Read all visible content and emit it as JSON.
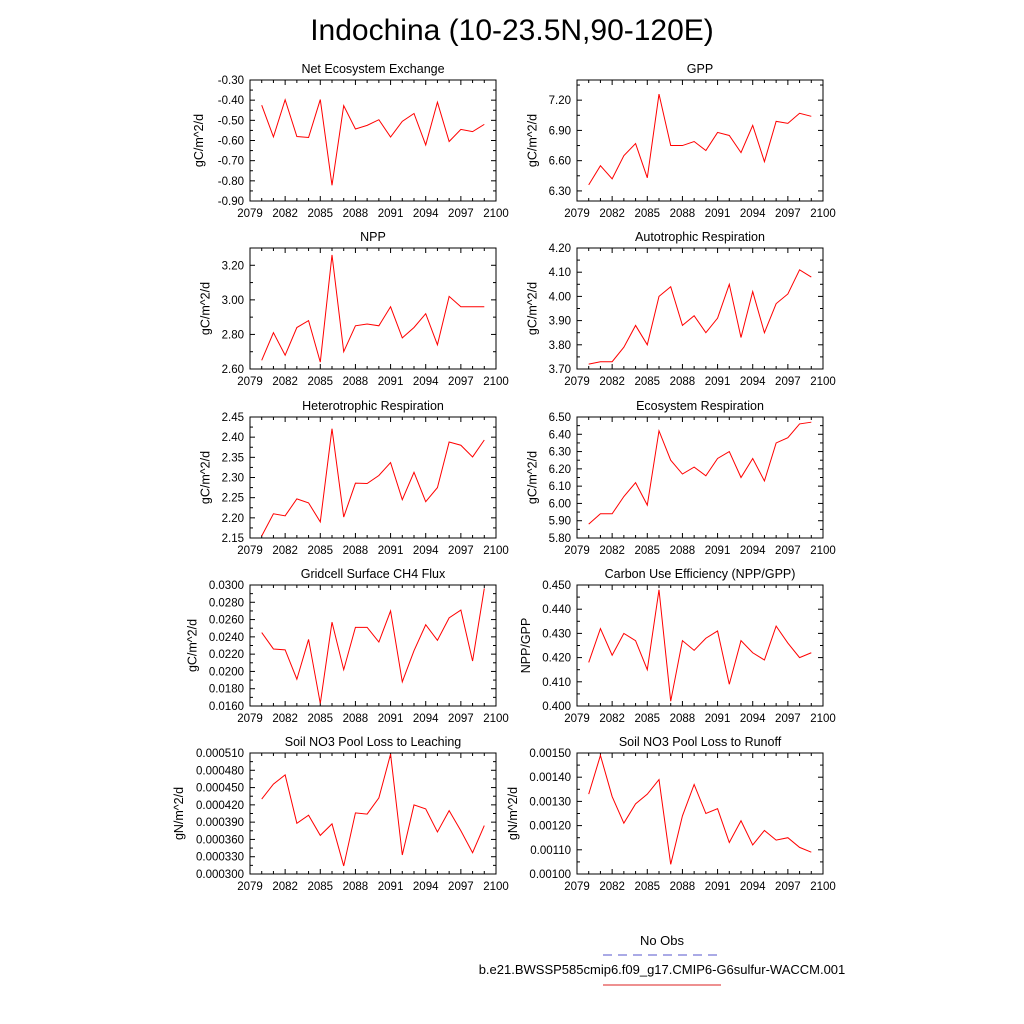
{
  "page": {
    "title": "Indochina (10-23.5N,90-120E)"
  },
  "legend": {
    "entries": [
      {
        "label": "No Obs",
        "color": "#5555cc",
        "dash": true
      },
      {
        "label": "b.e21.BWSSP585cmip6.f09_g17.CMIP6-G6sulfur-WACCM.001",
        "color": "#dd2222",
        "dash": false
      }
    ]
  },
  "colors": {
    "series": "#ff0000",
    "axis": "#000000"
  },
  "chart_data": [
    {
      "type": "line",
      "title": "Net Ecosystem Exchange",
      "ylabel": "gC/m^2/d",
      "xlim": [
        2079,
        2100
      ],
      "ylim": [
        -0.9,
        -0.3
      ],
      "xticks": [
        "2079",
        "2082",
        "2085",
        "2088",
        "2091",
        "2094",
        "2097",
        "2100"
      ],
      "yticks": [
        "-0.30",
        "-0.40",
        "-0.50",
        "-0.60",
        "-0.70",
        "-0.80",
        "-0.90"
      ],
      "x": [
        2080,
        2081,
        2082,
        2083,
        2084,
        2085,
        2086,
        2087,
        2088,
        2089,
        2090,
        2091,
        2092,
        2093,
        2094,
        2095,
        2096,
        2097,
        2098,
        2099
      ],
      "series": [
        {
          "values": [
            -0.425,
            -0.582,
            -0.398,
            -0.58,
            -0.585,
            -0.397,
            -0.822,
            -0.427,
            -0.543,
            -0.525,
            -0.497,
            -0.583,
            -0.505,
            -0.466,
            -0.622,
            -0.41,
            -0.605,
            -0.545,
            -0.556,
            -0.52
          ]
        }
      ]
    },
    {
      "type": "line",
      "title": "GPP",
      "ylabel": "gC/m^2/d",
      "xlim": [
        2079,
        2100
      ],
      "ylim": [
        6.2,
        7.4
      ],
      "xticks": [
        "2079",
        "2082",
        "2085",
        "2088",
        "2091",
        "2094",
        "2097",
        "2100"
      ],
      "yticks": [
        "7.20",
        "6.90",
        "6.60",
        "6.30"
      ],
      "x": [
        2080,
        2081,
        2082,
        2083,
        2084,
        2085,
        2086,
        2087,
        2088,
        2089,
        2090,
        2091,
        2092,
        2093,
        2094,
        2095,
        2096,
        2097,
        2098,
        2099
      ],
      "series": [
        {
          "values": [
            6.36,
            6.55,
            6.42,
            6.65,
            6.77,
            6.43,
            7.26,
            6.75,
            6.75,
            6.79,
            6.7,
            6.88,
            6.85,
            6.68,
            6.95,
            6.59,
            6.99,
            6.97,
            7.07,
            7.04
          ]
        }
      ]
    },
    {
      "type": "line",
      "title": "NPP",
      "ylabel": "gC/m^2/d",
      "xlim": [
        2079,
        2100
      ],
      "ylim": [
        2.6,
        3.3
      ],
      "xticks": [
        "2079",
        "2082",
        "2085",
        "2088",
        "2091",
        "2094",
        "2097",
        "2100"
      ],
      "yticks": [
        "3.20",
        "3.00",
        "2.80",
        "2.60"
      ],
      "x": [
        2080,
        2081,
        2082,
        2083,
        2084,
        2085,
        2086,
        2087,
        2088,
        2089,
        2090,
        2091,
        2092,
        2093,
        2094,
        2095,
        2096,
        2097,
        2098,
        2099
      ],
      "series": [
        {
          "values": [
            2.65,
            2.81,
            2.68,
            2.84,
            2.88,
            2.64,
            3.26,
            2.7,
            2.85,
            2.86,
            2.85,
            2.96,
            2.78,
            2.84,
            2.92,
            2.74,
            3.02,
            2.96,
            2.96,
            2.96
          ]
        }
      ]
    },
    {
      "type": "line",
      "title": "Autotrophic Respiration",
      "ylabel": "gC/m^2/d",
      "xlim": [
        2079,
        2100
      ],
      "ylim": [
        3.7,
        4.2
      ],
      "xticks": [
        "2079",
        "2082",
        "2085",
        "2088",
        "2091",
        "2094",
        "2097",
        "2100"
      ],
      "yticks": [
        "4.20",
        "4.10",
        "4.00",
        "3.90",
        "3.80",
        "3.70"
      ],
      "x": [
        2080,
        2081,
        2082,
        2083,
        2084,
        2085,
        2086,
        2087,
        2088,
        2089,
        2090,
        2091,
        2092,
        2093,
        2094,
        2095,
        2096,
        2097,
        2098,
        2099
      ],
      "series": [
        {
          "values": [
            3.72,
            3.73,
            3.73,
            3.79,
            3.88,
            3.8,
            4.0,
            4.04,
            3.88,
            3.92,
            3.85,
            3.91,
            4.05,
            3.83,
            4.02,
            3.85,
            3.97,
            4.01,
            4.11,
            4.08
          ]
        }
      ]
    },
    {
      "type": "line",
      "title": "Heterotrophic Respiration",
      "ylabel": "gC/m^2/d",
      "xlim": [
        2079,
        2100
      ],
      "ylim": [
        2.15,
        2.45
      ],
      "xticks": [
        "2079",
        "2082",
        "2085",
        "2088",
        "2091",
        "2094",
        "2097",
        "2100"
      ],
      "yticks": [
        "2.45",
        "2.40",
        "2.35",
        "2.30",
        "2.25",
        "2.20",
        "2.15"
      ],
      "x": [
        2080,
        2081,
        2082,
        2083,
        2084,
        2085,
        2086,
        2087,
        2088,
        2089,
        2090,
        2091,
        2092,
        2093,
        2094,
        2095,
        2096,
        2097,
        2098,
        2099
      ],
      "series": [
        {
          "values": [
            2.155,
            2.21,
            2.205,
            2.247,
            2.237,
            2.19,
            2.421,
            2.202,
            2.286,
            2.285,
            2.305,
            2.337,
            2.245,
            2.313,
            2.24,
            2.275,
            2.388,
            2.38,
            2.351,
            2.393
          ]
        }
      ]
    },
    {
      "type": "line",
      "title": "Ecosystem Respiration",
      "ylabel": "gC/m^2/d",
      "xlim": [
        2079,
        2100
      ],
      "ylim": [
        5.8,
        6.5
      ],
      "xticks": [
        "2079",
        "2082",
        "2085",
        "2088",
        "2091",
        "2094",
        "2097",
        "2100"
      ],
      "yticks": [
        "6.50",
        "6.40",
        "6.30",
        "6.20",
        "6.10",
        "6.00",
        "5.90",
        "5.80"
      ],
      "x": [
        2080,
        2081,
        2082,
        2083,
        2084,
        2085,
        2086,
        2087,
        2088,
        2089,
        2090,
        2091,
        2092,
        2093,
        2094,
        2095,
        2096,
        2097,
        2098,
        2099
      ],
      "series": [
        {
          "values": [
            5.88,
            5.94,
            5.94,
            6.04,
            6.12,
            5.99,
            6.42,
            6.25,
            6.17,
            6.21,
            6.16,
            6.26,
            6.3,
            6.15,
            6.26,
            6.13,
            6.35,
            6.38,
            6.46,
            6.47
          ]
        }
      ]
    },
    {
      "type": "line",
      "title": "Gridcell Surface CH4 Flux",
      "ylabel": "gC/m^2/d",
      "xlim": [
        2079,
        2100
      ],
      "ylim": [
        0.016,
        0.03
      ],
      "xticks": [
        "2079",
        "2082",
        "2085",
        "2088",
        "2091",
        "2094",
        "2097",
        "2100"
      ],
      "yticks": [
        "0.0300",
        "0.0280",
        "0.0260",
        "0.0240",
        "0.0220",
        "0.0200",
        "0.0180",
        "0.0160"
      ],
      "x": [
        2080,
        2081,
        2082,
        2083,
        2084,
        2085,
        2086,
        2087,
        2088,
        2089,
        2090,
        2091,
        2092,
        2093,
        2094,
        2095,
        2096,
        2097,
        2098,
        2099
      ],
      "series": [
        {
          "values": [
            0.0245,
            0.0226,
            0.0225,
            0.0191,
            0.0237,
            0.0163,
            0.0257,
            0.0202,
            0.0251,
            0.0251,
            0.0234,
            0.027,
            0.0188,
            0.0224,
            0.0254,
            0.0236,
            0.0262,
            0.0271,
            0.0212,
            0.0296
          ]
        }
      ]
    },
    {
      "type": "line",
      "title": "Carbon Use Efficiency (NPP/GPP)",
      "ylabel": "NPP/GPP",
      "xlim": [
        2079,
        2100
      ],
      "ylim": [
        0.4,
        0.45
      ],
      "xticks": [
        "2079",
        "2082",
        "2085",
        "2088",
        "2091",
        "2094",
        "2097",
        "2100"
      ],
      "yticks": [
        "0.450",
        "0.440",
        "0.430",
        "0.420",
        "0.410",
        "0.400"
      ],
      "x": [
        2080,
        2081,
        2082,
        2083,
        2084,
        2085,
        2086,
        2087,
        2088,
        2089,
        2090,
        2091,
        2092,
        2093,
        2094,
        2095,
        2096,
        2097,
        2098,
        2099
      ],
      "series": [
        {
          "values": [
            0.418,
            0.432,
            0.421,
            0.43,
            0.427,
            0.415,
            0.448,
            0.402,
            0.427,
            0.423,
            0.428,
            0.431,
            0.409,
            0.427,
            0.422,
            0.419,
            0.433,
            0.426,
            0.42,
            0.422
          ]
        }
      ]
    },
    {
      "type": "line",
      "title": "Soil NO3 Pool Loss to Leaching",
      "ylabel": "gN/m^2/d",
      "xlim": [
        2079,
        2100
      ],
      "ylim": [
        0.0003,
        0.00051
      ],
      "xticks": [
        "2079",
        "2082",
        "2085",
        "2088",
        "2091",
        "2094",
        "2097",
        "2100"
      ],
      "yticks": [
        "0.000510",
        "0.000480",
        "0.000450",
        "0.000420",
        "0.000390",
        "0.000360",
        "0.000330",
        "0.000300"
      ],
      "x": [
        2080,
        2081,
        2082,
        2083,
        2084,
        2085,
        2086,
        2087,
        2088,
        2089,
        2090,
        2091,
        2092,
        2093,
        2094,
        2095,
        2096,
        2097,
        2098,
        2099
      ],
      "series": [
        {
          "values": [
            0.00043,
            0.000456,
            0.000472,
            0.000388,
            0.000402,
            0.000367,
            0.000387,
            0.000314,
            0.000406,
            0.000404,
            0.000432,
            0.000508,
            0.000333,
            0.00042,
            0.000413,
            0.000373,
            0.00041,
            0.000375,
            0.000337,
            0.000384
          ]
        }
      ]
    },
    {
      "type": "line",
      "title": "Soil NO3 Pool Loss to Runoff",
      "ylabel": "gN/m^2/d",
      "xlim": [
        2079,
        2100
      ],
      "ylim": [
        0.001,
        0.0015
      ],
      "xticks": [
        "2079",
        "2082",
        "2085",
        "2088",
        "2091",
        "2094",
        "2097",
        "2100"
      ],
      "yticks": [
        "0.00150",
        "0.00140",
        "0.00130",
        "0.00120",
        "0.00110",
        "0.00100"
      ],
      "x": [
        2080,
        2081,
        2082,
        2083,
        2084,
        2085,
        2086,
        2087,
        2088,
        2089,
        2090,
        2091,
        2092,
        2093,
        2094,
        2095,
        2096,
        2097,
        2098,
        2099
      ],
      "series": [
        {
          "values": [
            0.00133,
            0.00149,
            0.00132,
            0.00121,
            0.00129,
            0.00133,
            0.00139,
            0.00104,
            0.00124,
            0.00137,
            0.00125,
            0.00127,
            0.00113,
            0.00122,
            0.00112,
            0.00118,
            0.00114,
            0.00115,
            0.00111,
            0.00109
          ]
        }
      ]
    }
  ]
}
